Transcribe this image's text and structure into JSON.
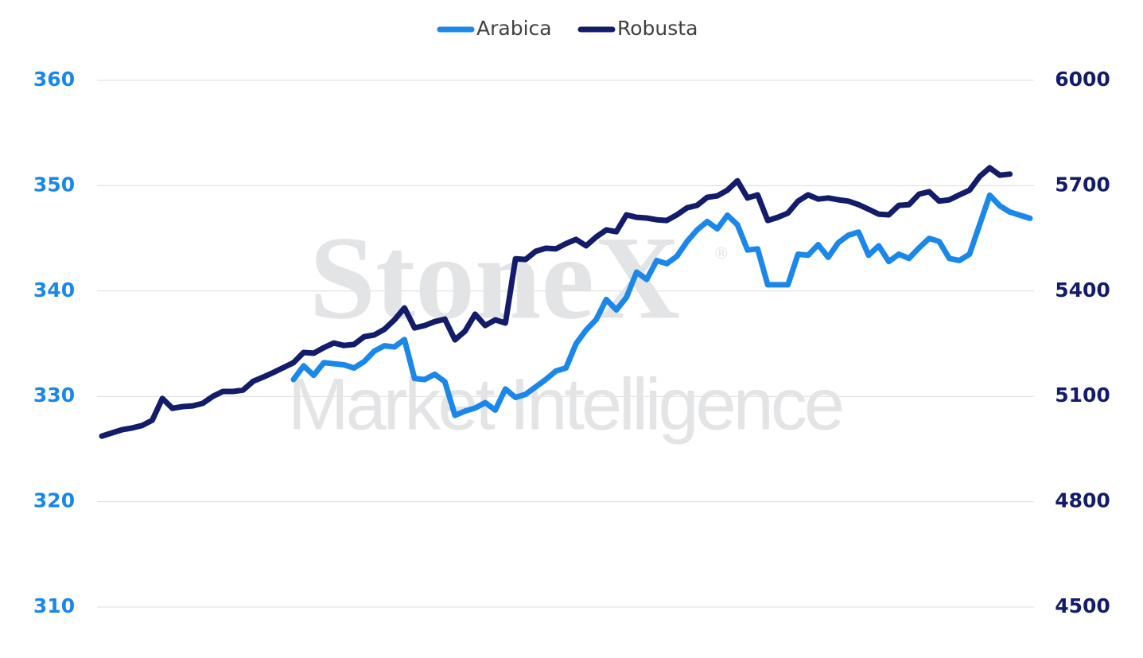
{
  "chart_data": {
    "type": "line",
    "watermark": {
      "brand": "StoneX",
      "mark": "®",
      "sub": "Market Intelligence"
    },
    "categories": [
      null,
      null,
      null,
      null,
      null,
      null,
      null,
      null,
      null,
      null,
      null,
      null,
      null,
      null,
      null,
      null,
      null,
      null,
      null,
      null,
      null,
      null,
      null,
      null,
      null,
      null,
      null,
      null,
      null,
      null,
      null,
      null,
      null,
      null,
      null,
      null,
      null,
      null,
      null,
      null,
      null,
      null,
      null,
      null,
      null,
      null,
      null,
      null,
      null,
      null,
      null,
      null,
      null,
      null,
      null,
      null,
      null,
      null,
      null,
      null,
      null,
      null,
      null,
      null,
      null,
      null,
      null,
      null,
      null,
      null,
      null,
      null,
      null,
      null,
      null,
      null,
      null,
      null,
      null,
      null,
      null,
      null,
      null,
      null,
      null,
      null,
      null,
      null,
      null,
      null,
      null,
      null,
      null
    ],
    "series": [
      {
        "name": "Arabica",
        "color": "#1a87ea",
        "axis": "y",
        "values": [
          null,
          null,
          null,
          null,
          null,
          null,
          null,
          null,
          null,
          null,
          null,
          null,
          null,
          null,
          null,
          null,
          null,
          null,
          null,
          331.6,
          332.9,
          332.0,
          333.2,
          333.1,
          333.0,
          332.7,
          333.3,
          334.3,
          334.8,
          334.7,
          335.4,
          331.7,
          331.6,
          332.1,
          331.4,
          328.2,
          328.6,
          328.9,
          329.4,
          328.7,
          330.7,
          329.9,
          330.2,
          330.9,
          331.6,
          332.4,
          332.7,
          335.0,
          336.3,
          337.3,
          339.2,
          338.2,
          339.4,
          341.8,
          341.1,
          342.9,
          342.6,
          343.3,
          344.7,
          345.8,
          346.6,
          345.9,
          347.2,
          346.3,
          343.9,
          344.0,
          340.6,
          340.6,
          340.6,
          343.5,
          343.4,
          344.4,
          343.2,
          344.6,
          345.3,
          345.6,
          343.4,
          344.3,
          342.8,
          343.5,
          343.1,
          344.1,
          345.0,
          344.7,
          343.1,
          342.9,
          343.5,
          346.3,
          349.1,
          348.1,
          347.5,
          347.2,
          346.9
        ]
      },
      {
        "name": "Robusta",
        "color": "#131c6b",
        "axis": "y2",
        "values": [
          4987,
          4996,
          5005,
          5010,
          5017,
          5032,
          5094,
          5066,
          5071,
          5073,
          5080,
          5100,
          5114,
          5114,
          5118,
          5143,
          5155,
          5168,
          5182,
          5196,
          5225,
          5223,
          5239,
          5252,
          5245,
          5248,
          5270,
          5275,
          5291,
          5318,
          5352,
          5295,
          5302,
          5313,
          5320,
          5261,
          5286,
          5334,
          5302,
          5318,
          5309,
          5492,
          5490,
          5513,
          5522,
          5520,
          5535,
          5547,
          5529,
          5554,
          5574,
          5569,
          5617,
          5610,
          5608,
          5603,
          5601,
          5617,
          5637,
          5644,
          5667,
          5671,
          5687,
          5714,
          5665,
          5674,
          5601,
          5610,
          5622,
          5656,
          5674,
          5662,
          5665,
          5660,
          5656,
          5646,
          5633,
          5619,
          5617,
          5644,
          5646,
          5676,
          5683,
          5656,
          5660,
          5674,
          5687,
          5726,
          5751,
          5730,
          5733,
          null,
          null
        ]
      }
    ],
    "ylim": [
      310,
      360
    ],
    "yticks": [
      310,
      320,
      330,
      340,
      350,
      360
    ],
    "y2lim": [
      4500,
      6000
    ],
    "y2ticks": [
      4500,
      4800,
      5100,
      5400,
      5700,
      6000
    ],
    "grid": true,
    "legend": "top"
  }
}
